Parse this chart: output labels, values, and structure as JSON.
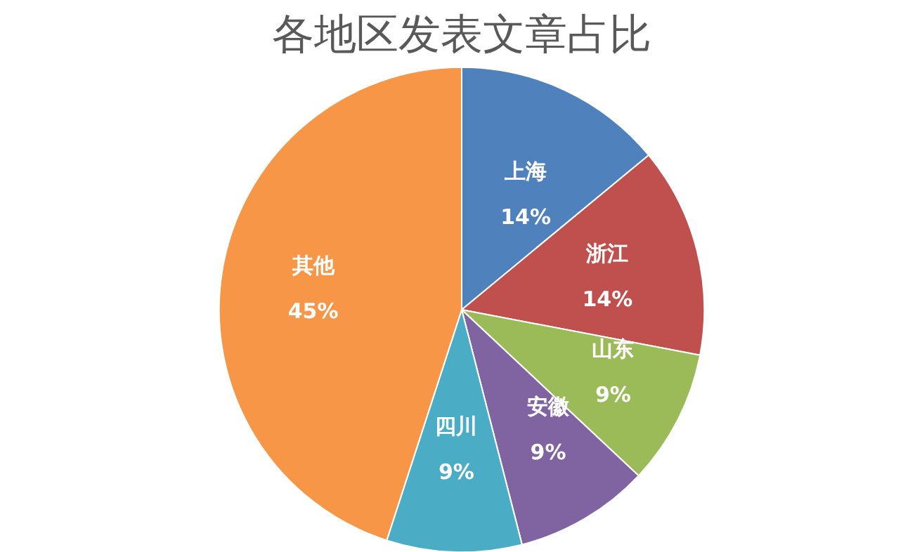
{
  "chart_data": {
    "type": "pie",
    "title": "各地区发表文章占比",
    "categories": [
      "上海",
      "浙江",
      "山东",
      "安徽",
      "四川",
      "其他"
    ],
    "values": [
      14,
      14,
      9,
      9,
      9,
      45
    ],
    "value_labels": [
      "14%",
      "14%",
      "9%",
      "9%",
      "9%",
      "45%"
    ],
    "colors": [
      "#4f81bd",
      "#c0504d",
      "#9bbb59",
      "#8064a2",
      "#4bacc6",
      "#f79646"
    ],
    "legend": false
  }
}
